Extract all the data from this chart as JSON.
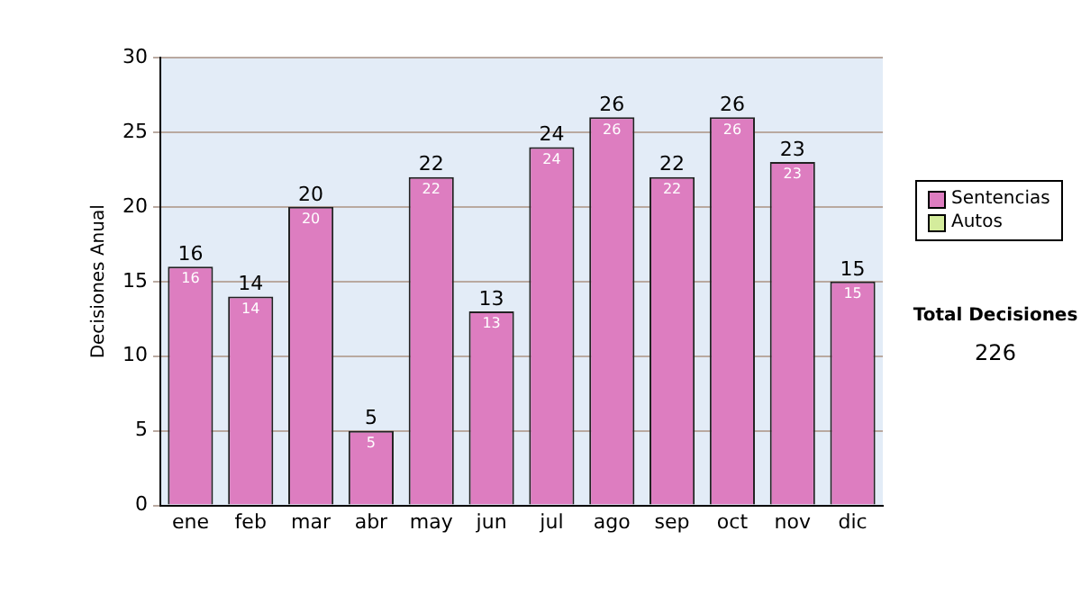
{
  "chart_data": {
    "type": "bar",
    "stacked": true,
    "ylabel": "Decisiones Anual",
    "categories": [
      "ene",
      "feb",
      "mar",
      "abr",
      "may",
      "jun",
      "jul",
      "ago",
      "sep",
      "oct",
      "nov",
      "dic"
    ],
    "series": [
      {
        "name": "Sentencias",
        "color": "#dd7dc0",
        "values": [
          16,
          14,
          20,
          5,
          22,
          13,
          24,
          26,
          22,
          26,
          23,
          15
        ],
        "value_labels": [
          "16",
          "14",
          "20",
          "5",
          "22",
          "13",
          "24",
          "26",
          "22",
          "26",
          "23",
          "15"
        ]
      },
      {
        "name": "Autos",
        "color": "#d4ec9c",
        "values": [
          0,
          0,
          0,
          0,
          0,
          0,
          0,
          0,
          0,
          0,
          0,
          0
        ]
      }
    ],
    "totals": [
      "16",
      "14",
      "20",
      "5",
      "22",
      "13",
      "24",
      "26",
      "22",
      "26",
      "23",
      "15"
    ],
    "ylim": [
      0,
      30
    ],
    "yticks": [
      0,
      5,
      10,
      15,
      20,
      25,
      30
    ],
    "grid": "y",
    "legend": "right",
    "annotations": [
      "Total Decisiones",
      "226"
    ]
  }
}
